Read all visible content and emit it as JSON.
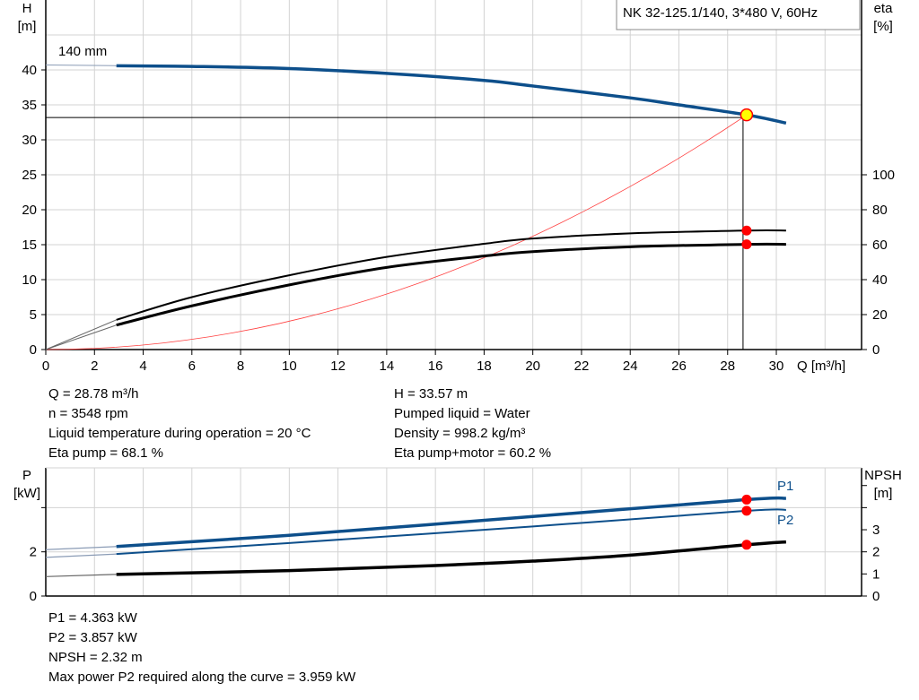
{
  "chart_data": [
    {
      "type": "line",
      "title": "NK 32-125.1/140, 3*480 V, 60Hz",
      "xlabel": "Q [m³/h]",
      "ylabel_left": [
        "H",
        "[m]"
      ],
      "ylabel_right": [
        "eta",
        "[%]"
      ],
      "xlim": [
        0,
        33.5
      ],
      "ylim_left": [
        0,
        50
      ],
      "ylim_right": [
        0,
        200
      ],
      "xticks": [
        0,
        2,
        4,
        6,
        8,
        10,
        12,
        14,
        16,
        18,
        20,
        22,
        24,
        26,
        28,
        30
      ],
      "yticks_left": [
        0,
        5,
        10,
        15,
        20,
        25,
        30,
        35,
        40
      ],
      "yticks_right": [
        0,
        20,
        40,
        60,
        80,
        100
      ],
      "grid": true,
      "annotation": "140 mm",
      "series": [
        {
          "key": "H",
          "axis": "left",
          "color": "#0d4f8b",
          "x": [
            2.9,
            6,
            10,
            14,
            18,
            20,
            24,
            26,
            28.78,
            30.4
          ],
          "y": [
            40.6,
            40.5,
            40.2,
            39.5,
            38.5,
            37.7,
            36.0,
            35.0,
            33.57,
            32.4
          ],
          "extension": {
            "x": [
              0,
              2.9
            ],
            "y": [
              40.7,
              40.6
            ]
          }
        },
        {
          "key": "eta_pump",
          "axis": "right",
          "color": "#000000",
          "x": [
            2.9,
            6,
            10,
            14,
            18,
            20,
            24,
            28.78,
            30.4
          ],
          "y": [
            17,
            30,
            42.5,
            53,
            60.5,
            63.5,
            66.5,
            68.1,
            68.1
          ],
          "extension": {
            "x": [
              0,
              2.9
            ],
            "y": [
              0,
              17
            ]
          }
        },
        {
          "key": "eta_pump_motor",
          "axis": "right",
          "color": "#000000",
          "x": [
            2.9,
            6,
            10,
            14,
            18,
            20,
            24,
            28.78,
            30.4
          ],
          "y": [
            14,
            25,
            37,
            47,
            53.5,
            56,
            58.8,
            60.2,
            60.2
          ],
          "extension": {
            "x": [
              0,
              2.9
            ],
            "y": [
              0,
              14
            ]
          }
        },
        {
          "key": "system_curve",
          "axis": "left",
          "color": "#ff4040",
          "formula": "H = 0.0405 * Q^2",
          "x_range": [
            0,
            28.78
          ]
        }
      ],
      "duty_point": {
        "Q": 28.78,
        "H": 33.57,
        "eta_pump": 68.1,
        "eta_pump_motor": 60.2
      }
    },
    {
      "type": "line",
      "xlim": [
        0,
        33.5
      ],
      "ylabel_left": [
        "P",
        "[kW]"
      ],
      "ylabel_right": [
        "NPSH",
        "[m]"
      ],
      "ylim_left": [
        0,
        5.8
      ],
      "ylim_right": [
        0,
        5.8
      ],
      "yticks_left": [
        0,
        2,
        4
      ],
      "yticks_left_labels": [
        "0",
        "2",
        ""
      ],
      "yticks_right": [
        0,
        1,
        2,
        3,
        4,
        5
      ],
      "yticks_right_labels": [
        "0",
        "1",
        "2",
        "3",
        "",
        ""
      ],
      "grid": true,
      "series": [
        {
          "name": "P1",
          "axis": "left",
          "color": "#0d4f8b",
          "x": [
            2.9,
            10,
            20,
            28.78,
            30.4
          ],
          "y": [
            2.24,
            2.75,
            3.6,
            4.363,
            4.42
          ],
          "extension": {
            "x": [
              0,
              2.9
            ],
            "y": [
              2.1,
              2.24
            ]
          }
        },
        {
          "name": "P2",
          "axis": "left",
          "color": "#0d4f8b",
          "x": [
            2.9,
            10,
            20,
            28.78,
            30.4
          ],
          "y": [
            1.9,
            2.4,
            3.15,
            3.857,
            3.9
          ],
          "extension": {
            "x": [
              0,
              2.9
            ],
            "y": [
              1.75,
              1.9
            ]
          }
        },
        {
          "key": "NPSH",
          "axis": "right",
          "color": "#000000",
          "x": [
            2.9,
            10,
            16,
            20,
            24,
            28.78,
            30.4
          ],
          "y": [
            0.98,
            1.15,
            1.38,
            1.58,
            1.85,
            2.32,
            2.45
          ],
          "extension": {
            "x": [
              0,
              2.9
            ],
            "y": [
              0.88,
              0.98
            ]
          }
        }
      ],
      "duty_point": {
        "Q": 28.78,
        "P1": 4.363,
        "P2": 3.857,
        "NPSH": 2.32
      }
    }
  ],
  "info_upper_left": [
    "Q = 28.78 m³/h",
    "n = 3548 rpm",
    "Liquid temperature during operation = 20 °C",
    "Eta pump = 68.1 %"
  ],
  "info_upper_right": [
    "H = 33.57 m",
    "Pumped liquid = Water",
    "Density = 998.2 kg/m³",
    "Eta pump+motor = 60.2 %"
  ],
  "info_lower": [
    "P1 = 4.363 kW",
    "P2 = 3.857 kW",
    "NPSH = 2.32 m",
    "Max power P2 required along the curve = 3.959 kW"
  ],
  "colors": {
    "curve_blue": "#0d4f8b",
    "grid": "#d3d3d3",
    "marker_red": "#ff0000",
    "duty_yellow": "#ffff00",
    "system": "#ff4040"
  }
}
